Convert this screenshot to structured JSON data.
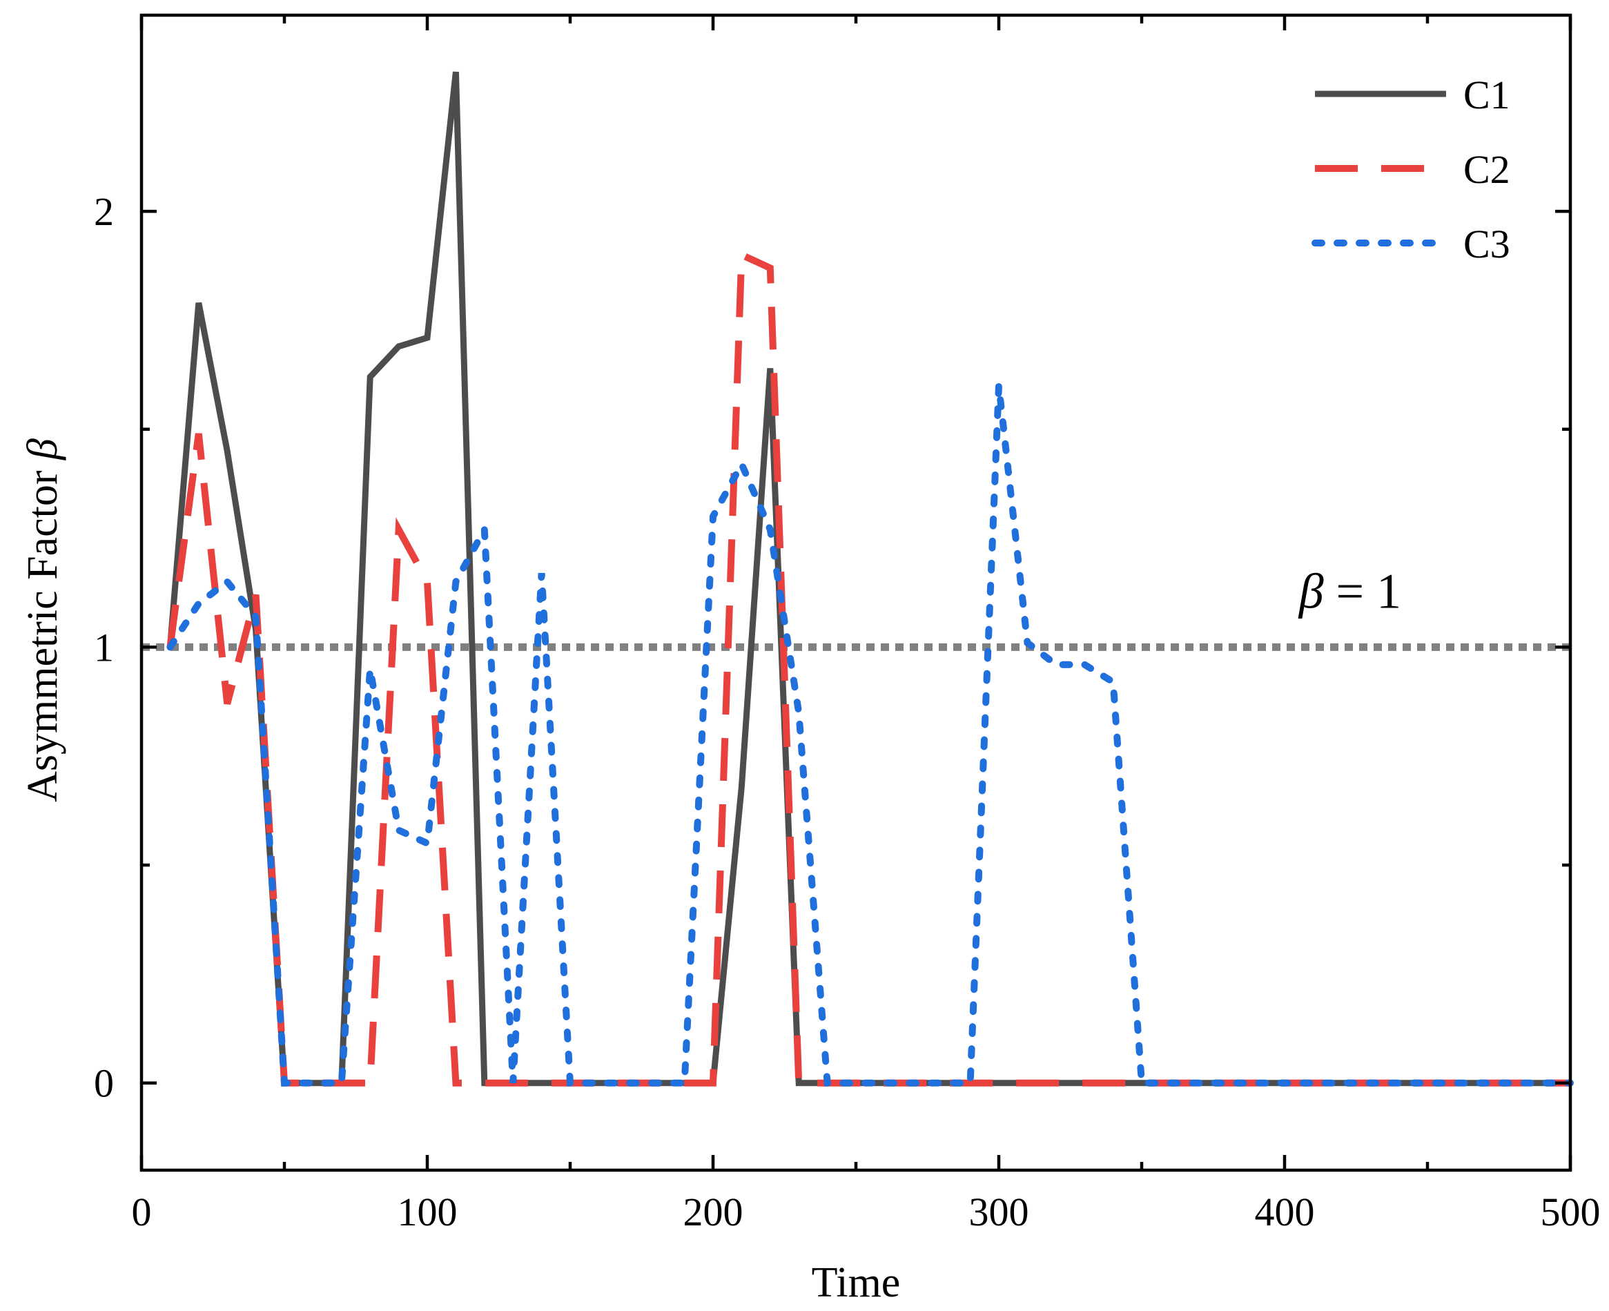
{
  "chart_data": {
    "type": "line",
    "title": "",
    "xlabel": "Time",
    "ylabel_text": "Asymmetric Factor ",
    "ylabel_symbol": "β",
    "xlim": [
      0,
      500
    ],
    "ylim": [
      -0.2,
      2.45
    ],
    "x_ticks": [
      0,
      100,
      200,
      300,
      400,
      500
    ],
    "x_tick_labels": [
      "0",
      "100",
      "200",
      "300",
      "400",
      "500"
    ],
    "x_minor_ticks": [
      50,
      150,
      250,
      350,
      450
    ],
    "y_ticks": [
      0,
      1,
      2
    ],
    "y_tick_labels": [
      "0",
      "1",
      "2"
    ],
    "y_minor_ticks": [
      0.5,
      1.5
    ],
    "grid": false,
    "legend_position": "top-right",
    "series": [
      {
        "name": "C1",
        "color": "#4d4d4d",
        "style": "solid",
        "x": [
          10,
          20,
          30,
          40,
          50,
          60,
          70,
          80,
          90,
          100,
          110,
          120,
          130,
          140,
          150,
          160,
          170,
          180,
          190,
          200,
          210,
          220,
          230,
          240,
          250,
          260,
          270,
          280,
          290,
          300,
          310,
          320,
          330,
          340,
          350,
          360,
          370,
          380,
          390,
          400,
          410,
          420,
          430,
          440,
          450,
          460,
          470,
          480,
          490,
          500
        ],
        "values": [
          1.0,
          1.79,
          1.45,
          1.04,
          0,
          0,
          0,
          1.62,
          1.69,
          1.71,
          2.32,
          0,
          0,
          0,
          0,
          0,
          0,
          0,
          0,
          0,
          0.68,
          1.64,
          0,
          0,
          0,
          0,
          0,
          0,
          0,
          0,
          0,
          0,
          0,
          0,
          0,
          0,
          0,
          0,
          0,
          0,
          0,
          0,
          0,
          0,
          0,
          0,
          0,
          0,
          0,
          0
        ]
      },
      {
        "name": "C2",
        "color": "#e8413e",
        "style": "dashed",
        "x": [
          10,
          20,
          30,
          40,
          50,
          60,
          70,
          80,
          90,
          100,
          110,
          120,
          130,
          140,
          150,
          160,
          170,
          180,
          190,
          200,
          210,
          220,
          230,
          240,
          250,
          260,
          270,
          280,
          290,
          300,
          310,
          320,
          330,
          340,
          350,
          360,
          370,
          380,
          390,
          400,
          410,
          420,
          430,
          440,
          450,
          460,
          470,
          480,
          490,
          500
        ],
        "values": [
          1.0,
          1.49,
          0.87,
          1.12,
          0,
          0,
          0,
          0,
          1.27,
          1.15,
          0,
          0,
          0,
          0,
          0,
          0,
          0,
          0,
          0,
          0,
          1.9,
          1.87,
          0,
          0,
          0,
          0,
          0,
          0,
          0,
          0,
          0,
          0,
          0,
          0,
          0,
          0,
          0,
          0,
          0,
          0,
          0,
          0,
          0,
          0,
          0,
          0,
          0,
          0,
          0,
          0
        ]
      },
      {
        "name": "C3",
        "color": "#1f6fdc",
        "style": "dotted",
        "x": [
          10,
          20,
          30,
          40,
          50,
          60,
          70,
          80,
          90,
          100,
          110,
          120,
          130,
          140,
          150,
          160,
          170,
          180,
          190,
          200,
          210,
          220,
          230,
          240,
          250,
          260,
          270,
          280,
          290,
          300,
          310,
          320,
          330,
          340,
          350,
          360,
          370,
          380,
          390,
          400,
          410,
          420,
          430,
          440,
          450,
          460,
          470,
          480,
          490,
          500
        ],
        "values": [
          1.0,
          1.1,
          1.15,
          1.07,
          0,
          0,
          0,
          0.95,
          0.58,
          0.55,
          1.15,
          1.27,
          0,
          1.17,
          0,
          0,
          0,
          0,
          0,
          1.3,
          1.42,
          1.27,
          0.85,
          0,
          0,
          0,
          0,
          0,
          0,
          1.6,
          1.01,
          0.96,
          0.96,
          0.92,
          0,
          0,
          0,
          0,
          0,
          0,
          0,
          0,
          0,
          0,
          0,
          0,
          0,
          0,
          0,
          0
        ]
      },
      {
        "name": "β = 1",
        "color": "#808080",
        "style": "dotted-reference",
        "x": [
          0,
          500
        ],
        "values": [
          1,
          1
        ]
      }
    ],
    "annotation": {
      "symbol": "β",
      "text": " = 1",
      "x": 405,
      "y": 1.09
    }
  }
}
